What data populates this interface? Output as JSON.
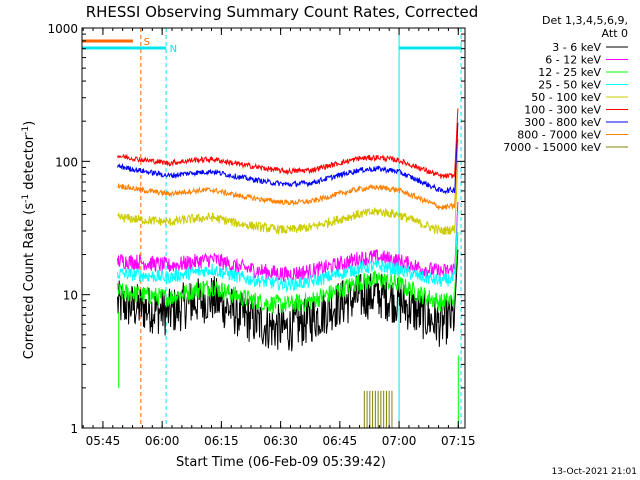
{
  "chart_data": {
    "type": "line",
    "title": "RHESSI Observing Summary Count Rates, Corrected",
    "xlabel": "Start Time (06-Feb-09 05:39:42)",
    "ylabel_main": "Corrected Count Rate (s",
    "ylabel_sup1": "-1",
    "ylabel_mid": " detector",
    "ylabel_sup2": "-1",
    "ylabel_end": ")",
    "footer": "13-Oct-2021 21:01",
    "yscale": "log",
    "ylim": [
      1,
      1000
    ],
    "xlim_minutes": [
      0,
      97
    ],
    "x_ticks": [
      {
        "label": "05:45",
        "minute": 5.3
      },
      {
        "label": "06:00",
        "minute": 20.3
      },
      {
        "label": "06:15",
        "minute": 35.3
      },
      {
        "label": "06:30",
        "minute": 50.3
      },
      {
        "label": "06:45",
        "minute": 65.3
      },
      {
        "label": "07:00",
        "minute": 80.3
      },
      {
        "label": "07:15",
        "minute": 95.3
      }
    ],
    "y_ticks": [
      {
        "label": "1",
        "value": 1
      },
      {
        "label": "10",
        "value": 10
      },
      {
        "label": "100",
        "value": 100
      },
      {
        "label": "1000",
        "value": 1000
      }
    ],
    "legend": {
      "header_line1": "Det 1,3,4,5,6,9,",
      "header_line2": "Att 0",
      "position": "top-right"
    },
    "series": [
      {
        "name": "3 - 6 keV",
        "color": "#000000",
        "start": 9.0,
        "end": 94.5,
        "spread": 0.18,
        "points": [
          [
            9,
            8.5
          ],
          [
            15,
            8
          ],
          [
            22,
            7.3
          ],
          [
            28,
            8.8
          ],
          [
            33,
            9.4
          ],
          [
            40,
            7
          ],
          [
            47,
            5.8
          ],
          [
            52,
            5.5
          ],
          [
            58,
            6.5
          ],
          [
            64,
            8.3
          ],
          [
            70,
            9.6
          ],
          [
            75,
            10
          ],
          [
            80,
            9
          ],
          [
            86,
            7
          ],
          [
            91,
            6
          ],
          [
            94,
            6.8
          ]
        ]
      },
      {
        "name": "6 - 12 keV",
        "color": "#ff00ff",
        "start": 9.0,
        "end": 94.5,
        "spread": 0.06,
        "points": [
          [
            9,
            18
          ],
          [
            15,
            17.5
          ],
          [
            22,
            16.5
          ],
          [
            28,
            17.5
          ],
          [
            33,
            18.5
          ],
          [
            40,
            16
          ],
          [
            47,
            14.8
          ],
          [
            52,
            14.2
          ],
          [
            58,
            15
          ],
          [
            64,
            16.5
          ],
          [
            70,
            18.6
          ],
          [
            75,
            19.2
          ],
          [
            80,
            18
          ],
          [
            86,
            15.8
          ],
          [
            91,
            14.8
          ],
          [
            94,
            15.5
          ]
        ]
      },
      {
        "name": "12 - 25 keV",
        "color": "#00ff00",
        "start": 9.0,
        "end": 94.5,
        "spread": 0.07,
        "points": [
          [
            9,
            10.5
          ],
          [
            15,
            10
          ],
          [
            22,
            9.5
          ],
          [
            28,
            10.7
          ],
          [
            33,
            11.5
          ],
          [
            40,
            9.6
          ],
          [
            47,
            8.6
          ],
          [
            52,
            8.4
          ],
          [
            58,
            9
          ],
          [
            64,
            10.5
          ],
          [
            70,
            12.4
          ],
          [
            75,
            13
          ],
          [
            80,
            12
          ],
          [
            86,
            10
          ],
          [
            91,
            8.7
          ],
          [
            94,
            9.2
          ]
        ]
      },
      {
        "name": "25 - 50 keV",
        "color": "#00ffff",
        "start": 9.0,
        "end": 94.5,
        "spread": 0.05,
        "points": [
          [
            9,
            14.5
          ],
          [
            15,
            14
          ],
          [
            22,
            13.5
          ],
          [
            28,
            14.6
          ],
          [
            33,
            15.5
          ],
          [
            40,
            13.5
          ],
          [
            47,
            12.4
          ],
          [
            52,
            11.9
          ],
          [
            58,
            12.5
          ],
          [
            64,
            14
          ],
          [
            70,
            15.8
          ],
          [
            75,
            16.5
          ],
          [
            80,
            15.5
          ],
          [
            86,
            13.6
          ],
          [
            91,
            12.6
          ],
          [
            94,
            13.2
          ]
        ]
      },
      {
        "name": "50 - 100 keV",
        "color": "#cccc00",
        "start": 9.0,
        "end": 94.5,
        "spread": 0.035,
        "points": [
          [
            9,
            38
          ],
          [
            15,
            36.5
          ],
          [
            22,
            35
          ],
          [
            28,
            37
          ],
          [
            33,
            38
          ],
          [
            40,
            34
          ],
          [
            47,
            31.5
          ],
          [
            52,
            30.5
          ],
          [
            58,
            32
          ],
          [
            64,
            36
          ],
          [
            70,
            40
          ],
          [
            75,
            42
          ],
          [
            80,
            40
          ],
          [
            86,
            34
          ],
          [
            91,
            30
          ],
          [
            94,
            31
          ]
        ]
      },
      {
        "name": "100 - 300 keV",
        "color": "#ff0000",
        "start": 9.0,
        "end": 94.5,
        "spread": 0.02,
        "points": [
          [
            9,
            110
          ],
          [
            15,
            103
          ],
          [
            22,
            97
          ],
          [
            28,
            102
          ],
          [
            33,
            104
          ],
          [
            40,
            95
          ],
          [
            47,
            88
          ],
          [
            52,
            84
          ],
          [
            58,
            86
          ],
          [
            64,
            95
          ],
          [
            70,
            105
          ],
          [
            75,
            107
          ],
          [
            80,
            102
          ],
          [
            86,
            88
          ],
          [
            91,
            77
          ],
          [
            94,
            78
          ]
        ]
      },
      {
        "name": "300 - 800 keV",
        "color": "#0000ff",
        "start": 9.0,
        "end": 94.5,
        "spread": 0.02,
        "points": [
          [
            9,
            92
          ],
          [
            15,
            85
          ],
          [
            22,
            78
          ],
          [
            28,
            82
          ],
          [
            33,
            84
          ],
          [
            40,
            76
          ],
          [
            47,
            70
          ],
          [
            52,
            67
          ],
          [
            58,
            69
          ],
          [
            64,
            77
          ],
          [
            70,
            86
          ],
          [
            75,
            88
          ],
          [
            80,
            84
          ],
          [
            86,
            70
          ],
          [
            91,
            60
          ],
          [
            94,
            61
          ]
        ]
      },
      {
        "name": "800 - 7000 keV",
        "color": "#ff8000",
        "start": 9.0,
        "end": 94.5,
        "spread": 0.02,
        "points": [
          [
            9,
            66
          ],
          [
            15,
            61
          ],
          [
            22,
            57
          ],
          [
            28,
            60
          ],
          [
            33,
            61
          ],
          [
            40,
            55
          ],
          [
            47,
            51
          ],
          [
            52,
            49
          ],
          [
            58,
            50
          ],
          [
            64,
            56
          ],
          [
            70,
            62
          ],
          [
            75,
            64
          ],
          [
            80,
            61
          ],
          [
            86,
            52
          ],
          [
            91,
            45
          ],
          [
            94,
            46
          ]
        ]
      },
      {
        "name": "7000 - 15000 keV",
        "color": "#808000",
        "start": 0,
        "end": 0,
        "spread": 0,
        "points": []
      }
    ],
    "olive_spikes_minutes": [
      71.5,
      72.2,
      72.9,
      73.6,
      74.3,
      75.0,
      75.7,
      76.4,
      77.1,
      77.8,
      78.5
    ],
    "olive_spike_top": 1.9,
    "flags": {
      "saa_label": "S",
      "night_label": "N",
      "saa_color": "#ff6600",
      "night_color": "#00e5ee"
    }
  }
}
